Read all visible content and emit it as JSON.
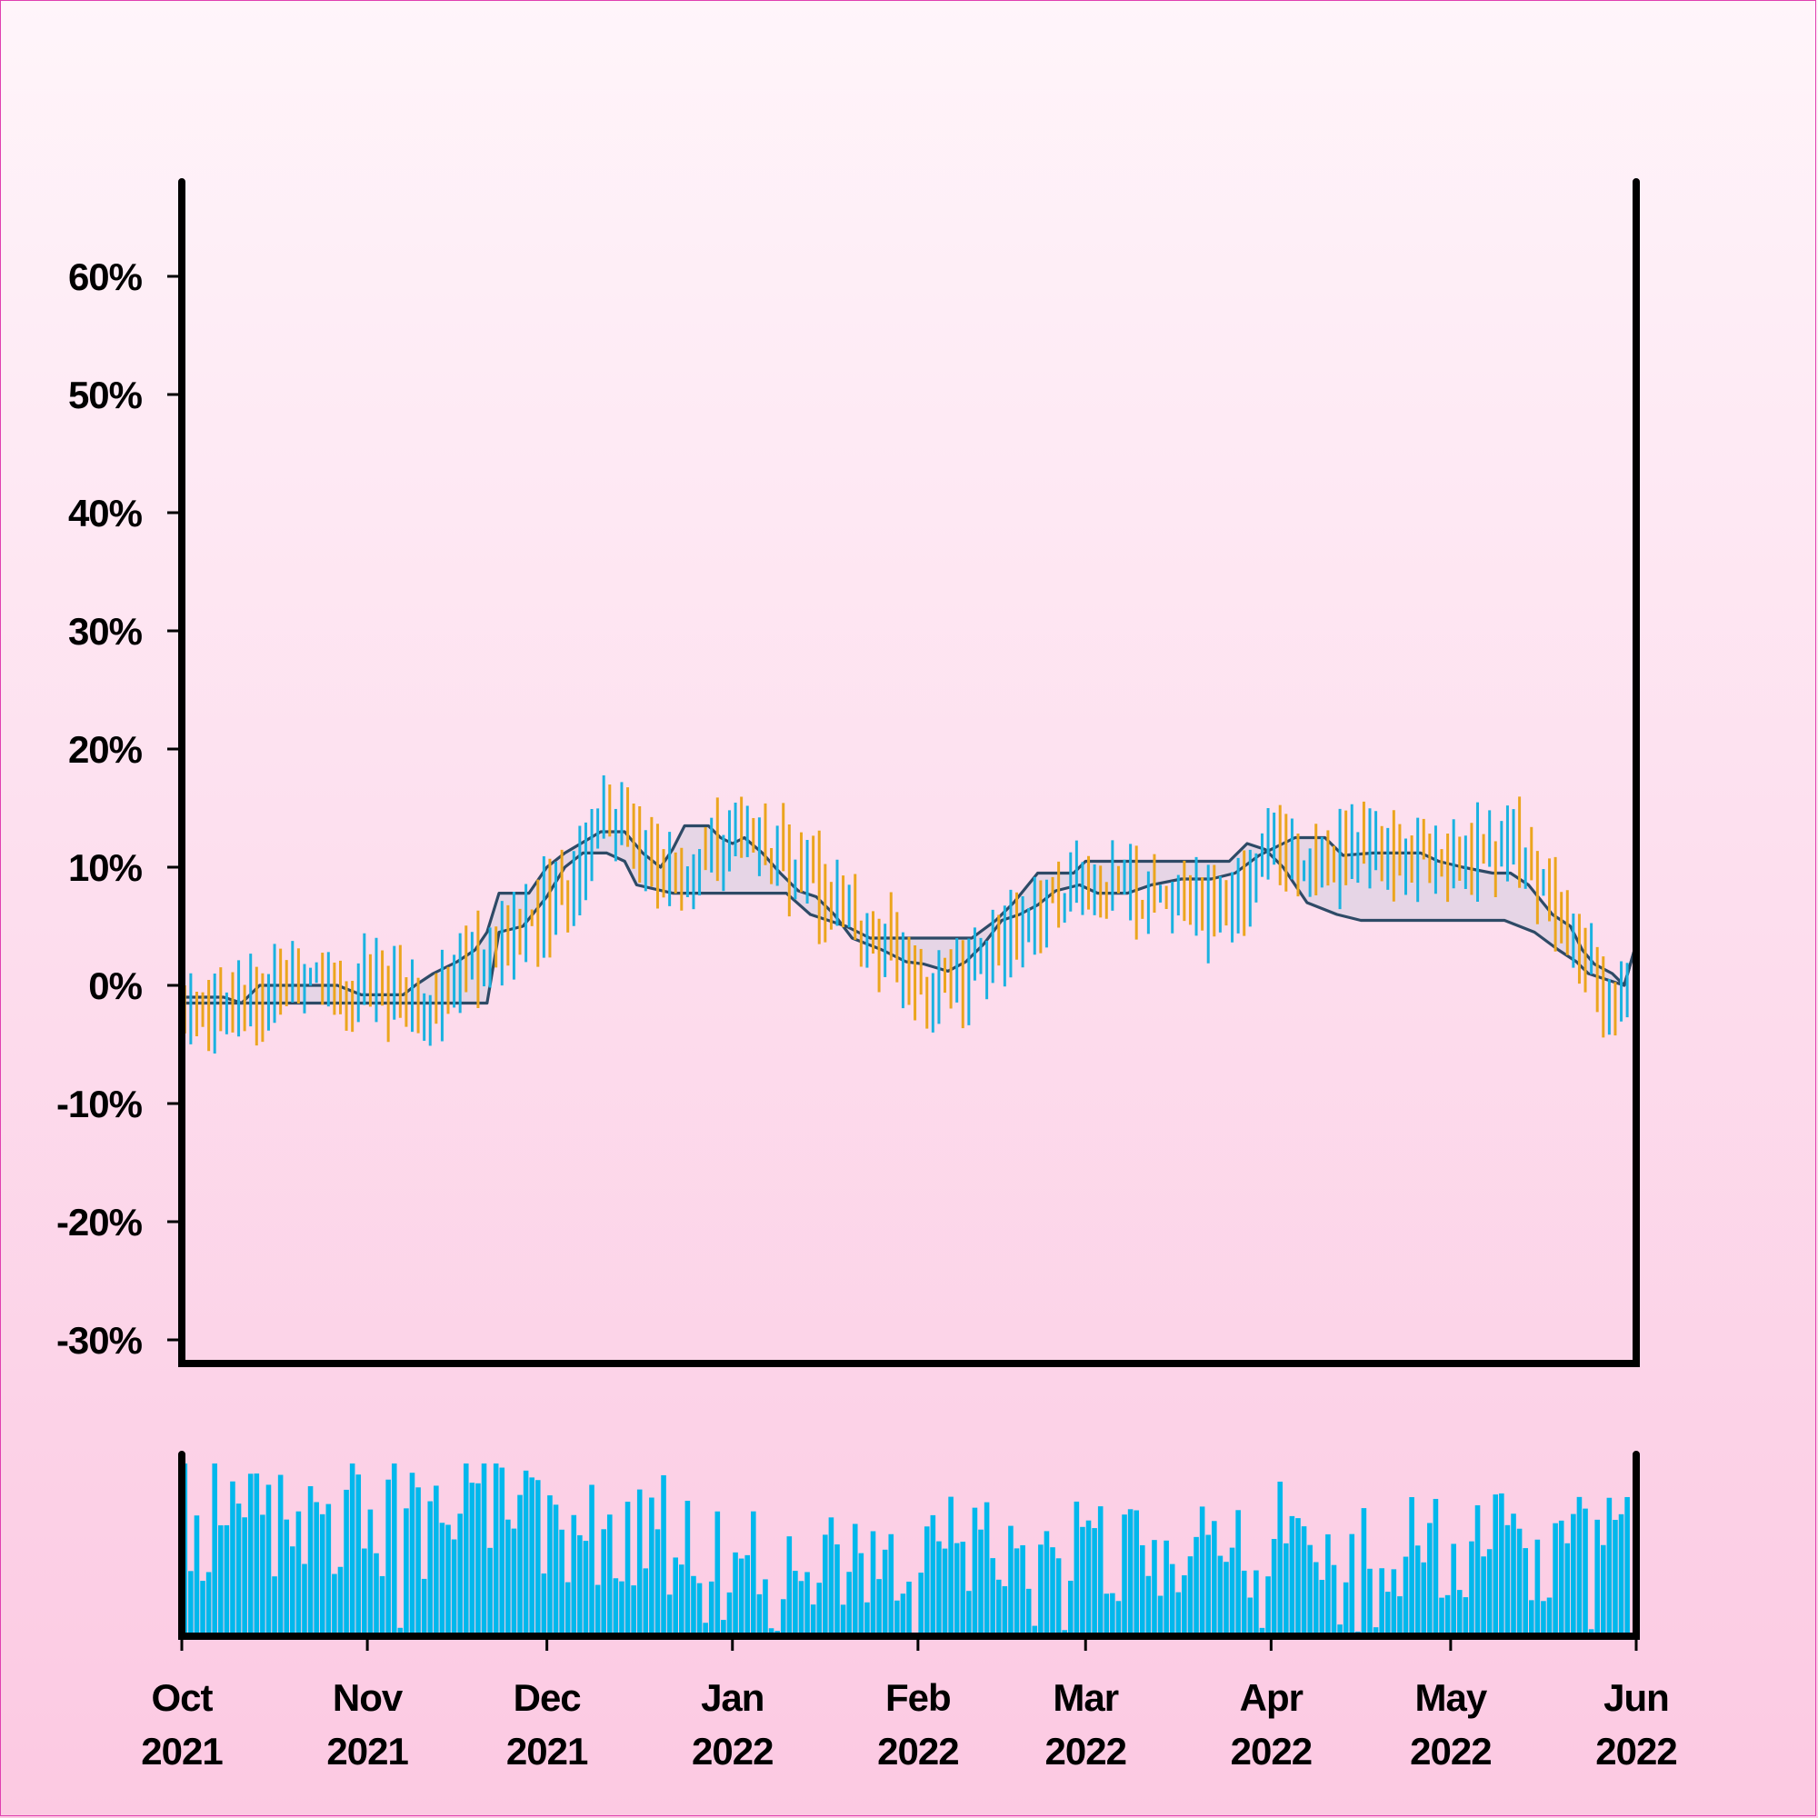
{
  "chart_data": [
    {
      "type": "ohlc",
      "ylim": [
        -0.32,
        0.68
      ],
      "yticks": [
        -0.3,
        -0.2,
        -0.1,
        0,
        0.1,
        0.2,
        0.3,
        0.4,
        0.5,
        0.6
      ],
      "ytick_labels": [
        "-30%",
        "-20%",
        "-10%",
        "0%",
        "10%",
        "20%",
        "30%",
        "40%",
        "50%",
        "60%"
      ],
      "x_range": [
        "2021-10-01",
        "2022-06-01"
      ],
      "xtick_labels": [
        [
          "Oct",
          "2021"
        ],
        [
          "Nov",
          "2021"
        ],
        [
          "Dec",
          "2021"
        ],
        [
          "Jan",
          "2022"
        ],
        [
          "Feb",
          "2022"
        ],
        [
          "Mar",
          "2022"
        ],
        [
          "Apr",
          "2022"
        ],
        [
          "May",
          "2022"
        ],
        [
          "Jun",
          "2022"
        ]
      ],
      "xtick_dates": [
        "2021-10-01",
        "2021-11-01",
        "2021-12-01",
        "2022-01-01",
        "2022-02-01",
        "2022-03-01",
        "2022-04-01",
        "2022-05-01",
        "2022-06-01"
      ],
      "up_color": "#1ab2e0",
      "down_color": "#eba51e",
      "channel_color": "#2e4a66",
      "channel_fill": "#e2d3e4",
      "close_trend": [
        [
          "2021-10-01",
          -0.01
        ],
        [
          "2021-10-10",
          -0.02
        ],
        [
          "2021-10-20",
          0.0
        ],
        [
          "2021-10-31",
          0.0
        ],
        [
          "2021-11-08",
          -0.02
        ],
        [
          "2021-11-15",
          0.0
        ],
        [
          "2021-11-22",
          0.03
        ],
        [
          "2021-11-30",
          0.06
        ],
        [
          "2021-12-06",
          0.1
        ],
        [
          "2021-12-12",
          0.15
        ],
        [
          "2021-12-18",
          0.12
        ],
        [
          "2021-12-24",
          0.08
        ],
        [
          "2021-12-30",
          0.13
        ],
        [
          "2022-01-06",
          0.12
        ],
        [
          "2022-01-13",
          0.09
        ],
        [
          "2022-01-20",
          0.06
        ],
        [
          "2022-01-27",
          0.03
        ],
        [
          "2022-02-03",
          0.0
        ],
        [
          "2022-02-08",
          -0.01
        ],
        [
          "2022-02-14",
          0.04
        ],
        [
          "2022-02-22",
          0.07
        ],
        [
          "2022-03-01",
          0.09
        ],
        [
          "2022-03-10",
          0.08
        ],
        [
          "2022-03-18",
          0.07
        ],
        [
          "2022-03-25",
          0.06
        ],
        [
          "2022-04-01",
          0.12
        ],
        [
          "2022-04-08",
          0.1
        ],
        [
          "2022-04-15",
          0.12
        ],
        [
          "2022-04-25",
          0.1
        ],
        [
          "2022-05-05",
          0.11
        ],
        [
          "2022-05-12",
          0.12
        ],
        [
          "2022-05-18",
          0.07
        ],
        [
          "2022-05-24",
          0.02
        ],
        [
          "2022-05-29",
          -0.02
        ],
        [
          "2022-06-01",
          0.03
        ]
      ],
      "channel_upper": [
        [
          "2021-10-01",
          -0.01
        ],
        [
          "2021-10-08",
          -0.01
        ],
        [
          "2021-10-11",
          -0.015
        ],
        [
          "2021-10-14",
          0.0
        ],
        [
          "2021-10-27",
          0.0
        ],
        [
          "2021-10-31",
          -0.008
        ],
        [
          "2021-11-07",
          -0.008
        ],
        [
          "2021-11-09",
          0.0
        ],
        [
          "2021-11-12",
          0.01
        ],
        [
          "2021-11-16",
          0.02
        ],
        [
          "2021-11-19",
          0.03
        ],
        [
          "2021-11-21",
          0.045
        ],
        [
          "2021-11-23",
          0.078
        ],
        [
          "2021-11-28",
          0.078
        ],
        [
          "2021-12-01",
          0.1
        ],
        [
          "2021-12-04",
          0.112
        ],
        [
          "2021-12-10",
          0.13
        ],
        [
          "2021-12-14",
          0.13
        ],
        [
          "2021-12-17",
          0.112
        ],
        [
          "2021-12-20",
          0.1
        ],
        [
          "2021-12-22",
          0.115
        ],
        [
          "2021-12-24",
          0.135
        ],
        [
          "2021-12-28",
          0.135
        ],
        [
          "2021-12-30",
          0.125
        ],
        [
          "2022-01-01",
          0.12
        ],
        [
          "2022-01-03",
          0.125
        ],
        [
          "2022-01-06",
          0.112
        ],
        [
          "2022-01-09",
          0.095
        ],
        [
          "2022-01-12",
          0.08
        ],
        [
          "2022-01-15",
          0.075
        ],
        [
          "2022-01-18",
          0.06
        ],
        [
          "2022-01-21",
          0.04
        ],
        [
          "2022-01-26",
          0.03
        ],
        [
          "2022-01-30",
          0.02
        ],
        [
          "2022-02-02",
          0.018
        ],
        [
          "2022-02-04",
          0.015
        ],
        [
          "2022-02-06",
          0.012
        ],
        [
          "2022-02-09",
          0.02
        ],
        [
          "2022-02-12",
          0.035
        ],
        [
          "2022-02-15",
          0.055
        ],
        [
          "2022-02-18",
          0.06
        ],
        [
          "2022-02-21",
          0.068
        ],
        [
          "2022-02-24",
          0.08
        ],
        [
          "2022-02-28",
          0.085
        ],
        [
          "2022-03-03",
          0.078
        ],
        [
          "2022-03-08",
          0.078
        ],
        [
          "2022-03-12",
          0.085
        ],
        [
          "2022-03-17",
          0.09
        ],
        [
          "2022-03-22",
          0.09
        ],
        [
          "2022-03-26",
          0.095
        ],
        [
          "2022-03-30",
          0.11
        ],
        [
          "2022-04-03",
          0.12
        ],
        [
          "2022-04-05",
          0.125
        ],
        [
          "2022-04-10",
          0.125
        ],
        [
          "2022-04-13",
          0.11
        ],
        [
          "2022-04-18",
          0.112
        ],
        [
          "2022-04-26",
          0.112
        ],
        [
          "2022-04-29",
          0.105
        ],
        [
          "2022-05-03",
          0.1
        ],
        [
          "2022-05-08",
          0.095
        ],
        [
          "2022-05-11",
          0.095
        ],
        [
          "2022-05-14",
          0.085
        ],
        [
          "2022-05-18",
          0.06
        ],
        [
          "2022-05-21",
          0.05
        ],
        [
          "2022-05-23",
          0.03
        ],
        [
          "2022-05-25",
          0.018
        ],
        [
          "2022-05-28",
          0.01
        ],
        [
          "2022-05-30",
          0.0
        ],
        [
          "2022-06-01",
          0.035
        ]
      ],
      "channel_lower": [
        [
          "2021-10-01",
          -0.015
        ],
        [
          "2021-10-27",
          -0.015
        ],
        [
          "2021-11-21",
          -0.015
        ],
        [
          "2021-11-23",
          0.045
        ],
        [
          "2021-11-27",
          0.05
        ],
        [
          "2021-12-01",
          0.075
        ],
        [
          "2021-12-04",
          0.1
        ],
        [
          "2021-12-07",
          0.112
        ],
        [
          "2021-12-11",
          0.112
        ],
        [
          "2021-12-14",
          0.105
        ],
        [
          "2021-12-16",
          0.085
        ],
        [
          "2021-12-22",
          0.078
        ],
        [
          "2022-01-10",
          0.078
        ],
        [
          "2022-01-14",
          0.06
        ],
        [
          "2022-01-20",
          0.05
        ],
        [
          "2022-01-24",
          0.04
        ],
        [
          "2022-02-10",
          0.04
        ],
        [
          "2022-02-14",
          0.055
        ],
        [
          "2022-02-17",
          0.07
        ],
        [
          "2022-02-21",
          0.095
        ],
        [
          "2022-02-27",
          0.095
        ],
        [
          "2022-03-01",
          0.105
        ],
        [
          "2022-03-25",
          0.105
        ],
        [
          "2022-03-28",
          0.12
        ],
        [
          "2022-03-31",
          0.115
        ],
        [
          "2022-04-03",
          0.1
        ],
        [
          "2022-04-07",
          0.07
        ],
        [
          "2022-04-12",
          0.06
        ],
        [
          "2022-04-16",
          0.055
        ],
        [
          "2022-05-10",
          0.055
        ],
        [
          "2022-05-15",
          0.045
        ],
        [
          "2022-05-19",
          0.03
        ],
        [
          "2022-05-22",
          0.02
        ],
        [
          "2022-05-24",
          0.01
        ],
        [
          "2022-05-30",
          0.0
        ],
        [
          "2022-06-01",
          0.035
        ]
      ]
    },
    {
      "type": "bar",
      "name": "volume",
      "color": "#00b8ec",
      "x_range": [
        "2021-10-01",
        "2022-06-01"
      ],
      "volume_level_by_month": [
        [
          "2021-10",
          0.72
        ],
        [
          "2021-11",
          0.78
        ],
        [
          "2021-12",
          0.62
        ],
        [
          "2022-01",
          0.48
        ],
        [
          "2022-02",
          0.55
        ],
        [
          "2022-03",
          0.5
        ],
        [
          "2022-04",
          0.6
        ],
        [
          "2022-05",
          0.55
        ]
      ]
    }
  ]
}
